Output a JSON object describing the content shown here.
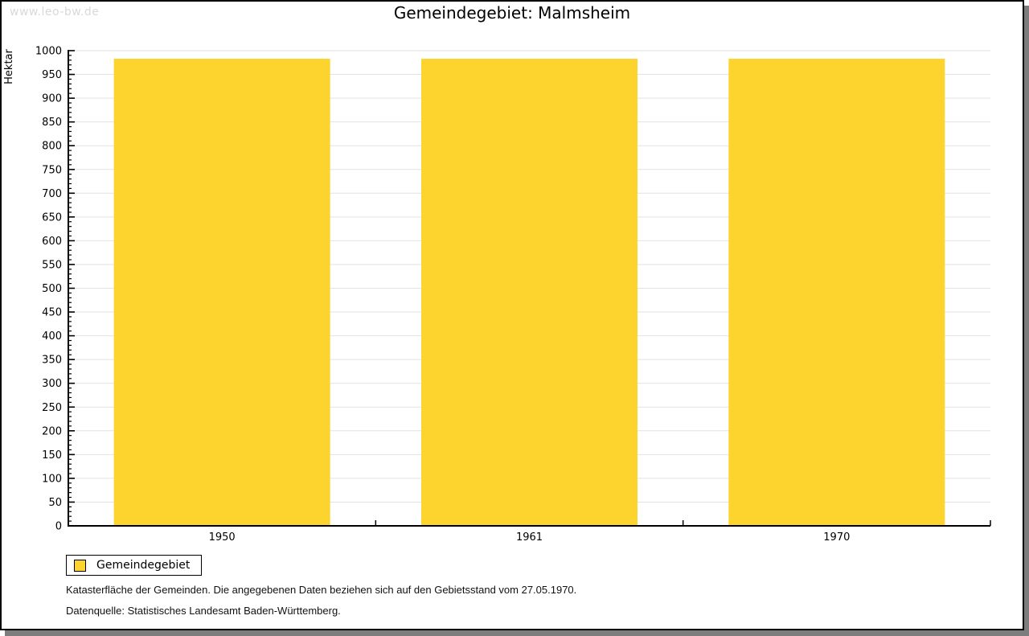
{
  "watermark": "www.leo-bw.de",
  "title": "Gemeindegebiet: Malmsheim",
  "legend": {
    "label": "Gemeindegebiet"
  },
  "footnotes": [
    "Katasterfläche der Gemeinden. Die angegebenen Daten beziehen sich auf den Gebietsstand vom 27.05.1970.",
    "Datenquelle: Statistisches Landesamt Baden-Württemberg."
  ],
  "colors": {
    "bar": "#fcd42d",
    "gridline": "#e2e2e2",
    "axis": "#000000",
    "tick_label": "#000000",
    "watermark": "#d9d9d9",
    "frame_shadow": "#7d7d7d"
  },
  "chart_data": {
    "type": "bar",
    "categories": [
      "1950",
      "1961",
      "1970"
    ],
    "values": [
      983,
      983,
      983
    ],
    "series": [
      {
        "name": "Gemeindegebiet",
        "values": [
          983,
          983,
          983
        ]
      }
    ],
    "title": "Gemeindegebiet: Malmsheim",
    "xlabel": "",
    "ylabel": "Hektar",
    "ylim": [
      0,
      1000
    ],
    "ytick_step": 50,
    "yminor_step": 10,
    "grid": true,
    "legend_position": "bottom-left"
  }
}
